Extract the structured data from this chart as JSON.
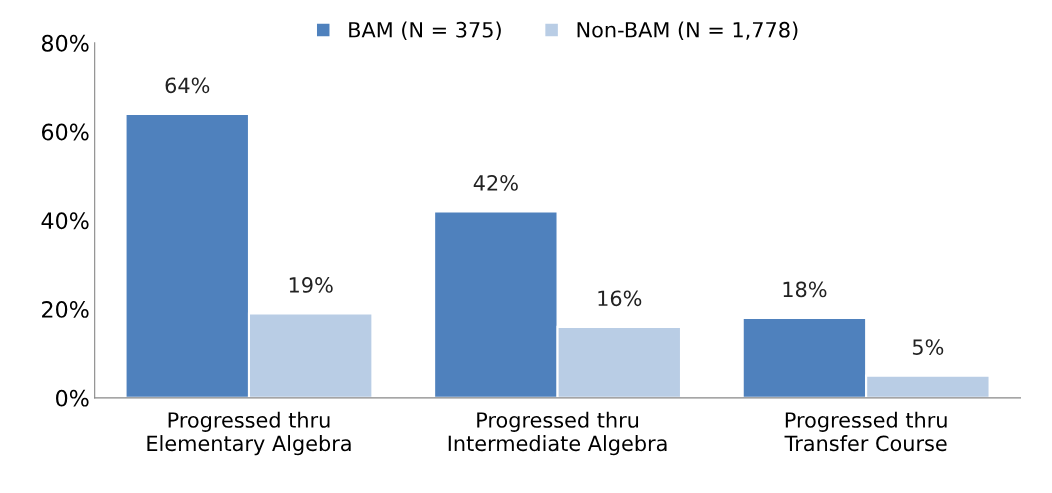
{
  "chart_data": {
    "type": "bar",
    "categories": [
      "Progressed thru\nElementary Algebra",
      "Progressed thru\nIntermediate Algebra",
      "Progressed thru\nTransfer Course"
    ],
    "series": [
      {
        "name": "BAM (N = 375)",
        "color": "#4f81bd",
        "values": [
          64,
          42,
          18
        ],
        "value_labels": [
          "64%",
          "42%",
          "18%"
        ]
      },
      {
        "name": "Non-BAM (N = 1,778)",
        "color": "#b9cde5",
        "values": [
          19,
          16,
          5
        ],
        "value_labels": [
          "19%",
          "16%",
          "5%"
        ]
      }
    ],
    "ylim": [
      0,
      80
    ],
    "yticks": [
      {
        "value": 0,
        "label": "0%"
      },
      {
        "value": 20,
        "label": "20%"
      },
      {
        "value": 40,
        "label": "40%"
      },
      {
        "value": 60,
        "label": "60%"
      },
      {
        "value": 80,
        "label": "80%"
      }
    ],
    "grid": false,
    "legend": "top"
  }
}
